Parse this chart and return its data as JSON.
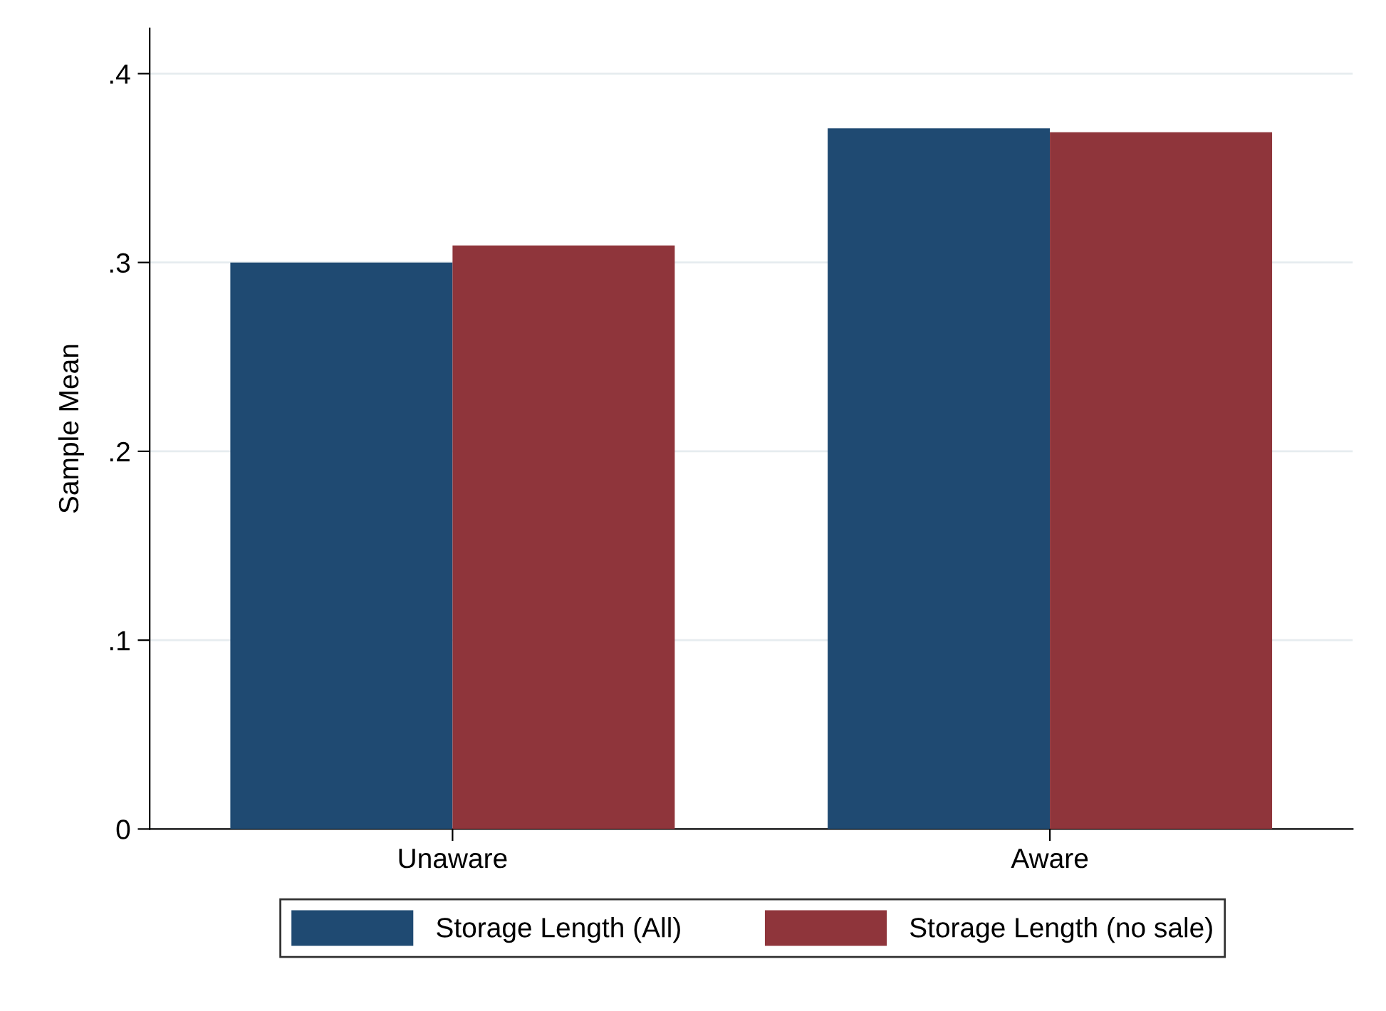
{
  "chart_data": {
    "type": "bar",
    "ylabel": "Sample Mean",
    "categories": [
      "Unaware",
      "Aware"
    ],
    "series": [
      {
        "name": "Storage Length (All)",
        "color": "#1f4a72",
        "values": [
          0.3,
          0.371
        ]
      },
      {
        "name": "Storage Length (no sale)",
        "color": "#8f353b",
        "values": [
          0.309,
          0.369
        ]
      }
    ],
    "ylim": [
      0,
      0.424
    ],
    "yticks": [
      0,
      {
        "value": 0.1,
        "label": ".1"
      },
      {
        "value": 0.2,
        "label": ".2"
      },
      {
        "value": 0.3,
        "label": ".3"
      },
      {
        "value": 0.4,
        "label": ".4"
      }
    ],
    "grid": "y",
    "legend": "bottom"
  }
}
